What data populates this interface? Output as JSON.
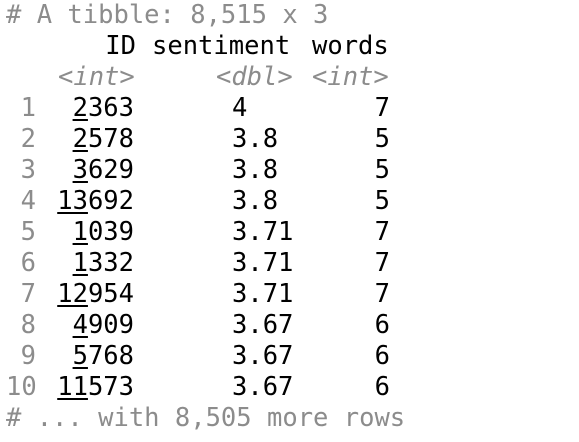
{
  "header": {
    "summary": "# A tibble: 8,515 x 3"
  },
  "columns": {
    "names": [
      "ID",
      "sentiment",
      "words"
    ],
    "types": [
      "<int>",
      "<dbl>",
      "<int>"
    ]
  },
  "rows": [
    {
      "n": "1",
      "id_ul": "2",
      "id_rest": "363",
      "sentiment": "4",
      "words": "7"
    },
    {
      "n": "2",
      "id_ul": "2",
      "id_rest": "578",
      "sentiment": "3.8",
      "words": "5"
    },
    {
      "n": "3",
      "id_ul": "3",
      "id_rest": "629",
      "sentiment": "3.8",
      "words": "5"
    },
    {
      "n": "4",
      "id_ul": "13",
      "id_rest": "692",
      "sentiment": "3.8",
      "words": "5"
    },
    {
      "n": "5",
      "id_ul": "1",
      "id_rest": "039",
      "sentiment": "3.71",
      "words": "7"
    },
    {
      "n": "6",
      "id_ul": "1",
      "id_rest": "332",
      "sentiment": "3.71",
      "words": "7"
    },
    {
      "n": "7",
      "id_ul": "12",
      "id_rest": "954",
      "sentiment": "3.71",
      "words": "7"
    },
    {
      "n": "8",
      "id_ul": "4",
      "id_rest": "909",
      "sentiment": "3.67",
      "words": "6"
    },
    {
      "n": "9",
      "id_ul": "5",
      "id_rest": "768",
      "sentiment": "3.67",
      "words": "6"
    },
    {
      "n": "10",
      "id_ul": "11",
      "id_rest": "573",
      "sentiment": "3.67",
      "words": "6"
    }
  ],
  "footer": {
    "more_rows": "# ... with 8,505 more rows"
  }
}
